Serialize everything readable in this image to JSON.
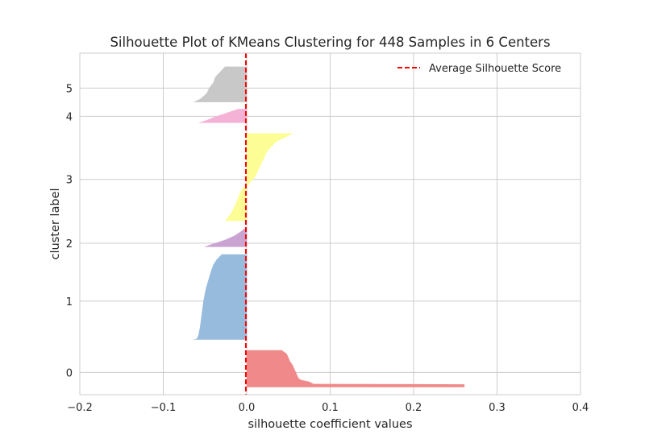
{
  "chart_data": {
    "type": "area",
    "title": "Silhouette Plot of KMeans Clustering for 448 Samples in 6 Centers",
    "xlabel": "silhouette coefficient values",
    "ylabel": "cluster label",
    "xlim": [
      -0.2,
      0.4
    ],
    "ylim": [
      0,
      460
    ],
    "x_ticks": [
      "−0.2",
      "−0.1",
      "0.0",
      "0.1",
      "0.2",
      "0.3",
      "0.4"
    ],
    "x_tick_values": [
      -0.2,
      -0.1,
      0.0,
      0.1,
      0.2,
      0.3,
      0.4
    ],
    "y_ticks": [
      "0",
      "1",
      "2",
      "3",
      "4",
      "5"
    ],
    "y_tick_values": [
      30,
      126,
      204,
      290,
      375,
      413
    ],
    "grid": true,
    "legend": {
      "placement": "top-right",
      "entries": [
        "Average Silhouette Score"
      ]
    },
    "average_silhouette_score": -0.001,
    "average_line_color": "#ff0000",
    "clusters": [
      {
        "label": "0",
        "color": "#f08a8a",
        "y_start": 10,
        "y_end": 60,
        "profile": [
          [
            0.0,
            0.261
          ],
          [
            0.08,
            0.261
          ],
          [
            0.09,
            0.08
          ],
          [
            0.15,
            0.075
          ],
          [
            0.2,
            0.065
          ],
          [
            0.25,
            0.062
          ],
          [
            0.35,
            0.06
          ],
          [
            0.45,
            0.058
          ],
          [
            0.6,
            0.055
          ],
          [
            0.7,
            0.052
          ],
          [
            0.8,
            0.05
          ],
          [
            0.9,
            0.048
          ],
          [
            1.0,
            0.042
          ]
        ]
      },
      {
        "label": "1",
        "color": "#97bbdd",
        "y_start": 74,
        "y_end": 189,
        "profile": [
          [
            0.0,
            -0.065
          ],
          [
            0.01,
            -0.06
          ],
          [
            0.05,
            -0.058
          ],
          [
            0.15,
            -0.056
          ],
          [
            0.3,
            -0.054
          ],
          [
            0.45,
            -0.052
          ],
          [
            0.6,
            -0.049
          ],
          [
            0.7,
            -0.046
          ],
          [
            0.8,
            -0.043
          ],
          [
            0.88,
            -0.04
          ],
          [
            0.94,
            -0.036
          ],
          [
            1.0,
            -0.03
          ]
        ]
      },
      {
        "label": "2",
        "color": "#c9a3d1",
        "y_start": 199,
        "y_end": 224,
        "profile": [
          [
            0.0,
            -0.051
          ],
          [
            0.1,
            -0.045
          ],
          [
            0.25,
            -0.035
          ],
          [
            0.4,
            -0.025
          ],
          [
            0.6,
            -0.015
          ],
          [
            0.8,
            -0.008
          ],
          [
            1.0,
            -0.002
          ]
        ]
      },
      {
        "label": "3",
        "color": "#fdfd96",
        "y_start": 234,
        "y_end": 352,
        "profile": [
          [
            0.0,
            -0.026
          ],
          [
            0.1,
            -0.018
          ],
          [
            0.2,
            -0.013
          ],
          [
            0.3,
            -0.009
          ],
          [
            0.38,
            -0.005
          ],
          [
            0.4,
            0.001
          ],
          [
            0.45,
            0.005
          ],
          [
            0.5,
            0.01
          ],
          [
            0.6,
            0.015
          ],
          [
            0.7,
            0.02
          ],
          [
            0.8,
            0.025
          ],
          [
            0.9,
            0.035
          ],
          [
            1.0,
            0.056
          ]
        ]
      },
      {
        "label": "4",
        "color": "#f5b2d7",
        "y_start": 366,
        "y_end": 385,
        "profile": [
          [
            0.0,
            -0.058
          ],
          [
            0.2,
            -0.048
          ],
          [
            0.4,
            -0.04
          ],
          [
            0.6,
            -0.03
          ],
          [
            0.8,
            -0.02
          ],
          [
            1.0,
            -0.01
          ]
        ]
      },
      {
        "label": "5",
        "color": "#c8c8c8",
        "y_start": 394,
        "y_end": 442,
        "profile": [
          [
            0.0,
            -0.064
          ],
          [
            0.1,
            -0.055
          ],
          [
            0.25,
            -0.048
          ],
          [
            0.4,
            -0.045
          ],
          [
            0.55,
            -0.04
          ],
          [
            0.7,
            -0.038
          ],
          [
            0.85,
            -0.032
          ],
          [
            0.95,
            -0.028
          ],
          [
            1.0,
            -0.026
          ]
        ]
      }
    ]
  }
}
